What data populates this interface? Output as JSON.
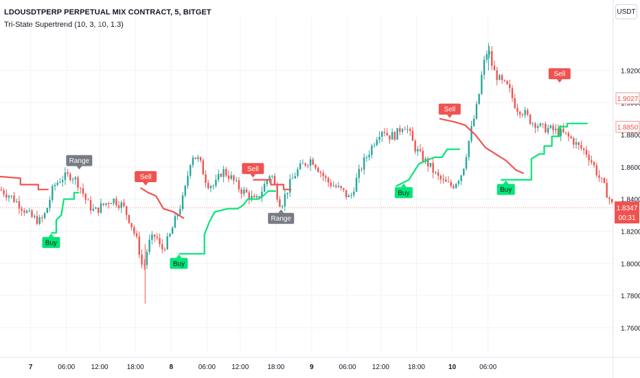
{
  "header": {
    "symbol_title": "LDOUSDTPERP PERPETUAL MIX CONTRACT, 5, BITGET",
    "indicator_label": "Tri-State Supertrend (10, 3, 10, 1.3)",
    "currency_button": "USDT"
  },
  "colors": {
    "bull": "#26a69a",
    "bear": "#ef5350",
    "trend_up": "#00e676",
    "trend_down": "#ef5350",
    "range_label": "#787b86",
    "last_price_bg": "#ef5350",
    "axis_text": "#131722",
    "grid": "#f0f3fa"
  },
  "chart_data": {
    "type": "candlestick",
    "y_axis": {
      "ylim": [
        1.745,
        1.945
      ],
      "ticks": [
        "1.7600",
        "1.7800",
        "1.8000",
        "1.8200",
        "1.8400",
        "1.8600",
        "1.8800",
        "1.9000",
        "1.9200"
      ],
      "position": "right"
    },
    "x_axis": {
      "xlim": [
        0,
        240
      ],
      "ticks": [
        {
          "label": "7",
          "x": 12,
          "bold": true
        },
        {
          "label": "06:00",
          "x": 26
        },
        {
          "label": "12:00",
          "x": 39
        },
        {
          "label": "18:00",
          "x": 53
        },
        {
          "label": "8",
          "x": 67,
          "bold": true
        },
        {
          "label": "06:00",
          "x": 81
        },
        {
          "label": "12:00",
          "x": 94
        },
        {
          "label": "18:00",
          "x": 108
        },
        {
          "label": "9",
          "x": 122,
          "bold": true
        },
        {
          "label": "06:00",
          "x": 136
        },
        {
          "label": "12:00",
          "x": 149
        },
        {
          "label": "18:00",
          "x": 163
        },
        {
          "label": "10",
          "x": 177,
          "bold": true
        },
        {
          "label": "06:00",
          "x": 191
        }
      ]
    },
    "price_path": [
      [
        0,
        1.846
      ],
      [
        4,
        1.842
      ],
      [
        8,
        1.836
      ],
      [
        12,
        1.829
      ],
      [
        16,
        1.826
      ],
      [
        18,
        1.832
      ],
      [
        21,
        1.848
      ],
      [
        24,
        1.853
      ],
      [
        28,
        1.855
      ],
      [
        31,
        1.849
      ],
      [
        34,
        1.838
      ],
      [
        37,
        1.832
      ],
      [
        40,
        1.836
      ],
      [
        44,
        1.84
      ],
      [
        48,
        1.836
      ],
      [
        51,
        1.826
      ],
      [
        54,
        1.812
      ],
      [
        56,
        1.795
      ],
      [
        58,
        1.812
      ],
      [
        61,
        1.818
      ],
      [
        63,
        1.808
      ],
      [
        66,
        1.815
      ],
      [
        69,
        1.829
      ],
      [
        72,
        1.842
      ],
      [
        75,
        1.868
      ],
      [
        78,
        1.864
      ],
      [
        81,
        1.85
      ],
      [
        84,
        1.848
      ],
      [
        87,
        1.858
      ],
      [
        90,
        1.854
      ],
      [
        94,
        1.846
      ],
      [
        97,
        1.843
      ],
      [
        100,
        1.838
      ],
      [
        103,
        1.847
      ],
      [
        106,
        1.857
      ],
      [
        108,
        1.845
      ],
      [
        110,
        1.836
      ],
      [
        113,
        1.848
      ],
      [
        116,
        1.857
      ],
      [
        119,
        1.862
      ],
      [
        122,
        1.865
      ],
      [
        125,
        1.858
      ],
      [
        128,
        1.851
      ],
      [
        131,
        1.848
      ],
      [
        134,
        1.845
      ],
      [
        137,
        1.84
      ],
      [
        139,
        1.85
      ],
      [
        142,
        1.862
      ],
      [
        145,
        1.871
      ],
      [
        148,
        1.881
      ],
      [
        150,
        1.884
      ],
      [
        152,
        1.879
      ],
      [
        155,
        1.88
      ],
      [
        158,
        1.887
      ],
      [
        160,
        1.882
      ],
      [
        162,
        1.873
      ],
      [
        165,
        1.866
      ],
      [
        168,
        1.861
      ],
      [
        171,
        1.854
      ],
      [
        174,
        1.85
      ],
      [
        177,
        1.848
      ],
      [
        179,
        1.852
      ],
      [
        181,
        1.857
      ],
      [
        184,
        1.88
      ],
      [
        187,
        1.9
      ],
      [
        189,
        1.922
      ],
      [
        191,
        1.934
      ],
      [
        193,
        1.92
      ],
      [
        196,
        1.913
      ],
      [
        199,
        1.909
      ],
      [
        202,
        1.897
      ],
      [
        205,
        1.894
      ],
      [
        208,
        1.888
      ],
      [
        210,
        1.887
      ],
      [
        212,
        1.884
      ],
      [
        214,
        1.884
      ],
      [
        216,
        1.883
      ],
      [
        218,
        1.882
      ],
      [
        220,
        1.881
      ],
      [
        222,
        1.879
      ],
      [
        224,
        1.877
      ],
      [
        226,
        1.873
      ],
      [
        228,
        1.871
      ],
      [
        230,
        1.868
      ],
      [
        232,
        1.862
      ],
      [
        234,
        1.855
      ],
      [
        236,
        1.849
      ],
      [
        238,
        1.842
      ],
      [
        240,
        1.8347
      ]
    ],
    "supertrend": [
      {
        "trend": "down",
        "points": [
          [
            0,
            1.854
          ],
          [
            8,
            1.853
          ],
          [
            8,
            1.849
          ],
          [
            15,
            1.849
          ],
          [
            15,
            1.846
          ],
          [
            19,
            1.846
          ]
        ]
      },
      {
        "trend": "up",
        "points": [
          [
            20,
            1.819
          ],
          [
            22,
            1.819
          ],
          [
            22,
            1.827
          ],
          [
            24,
            1.83
          ],
          [
            25,
            1.84
          ],
          [
            29,
            1.84
          ],
          [
            29,
            1.844
          ],
          [
            31,
            1.844
          ]
        ]
      },
      {
        "trend": "down",
        "points": [
          [
            55,
            1.847
          ],
          [
            58,
            1.844
          ],
          [
            61,
            1.842
          ],
          [
            64,
            1.834
          ],
          [
            68,
            1.832
          ],
          [
            70,
            1.83
          ],
          [
            72,
            1.828
          ]
        ]
      },
      {
        "trend": "up",
        "points": [
          [
            70,
            1.806
          ],
          [
            80,
            1.806
          ],
          [
            80,
            1.818
          ],
          [
            82,
            1.826
          ],
          [
            84,
            1.832
          ],
          [
            89,
            1.834
          ],
          [
            93,
            1.834
          ],
          [
            95,
            1.836
          ],
          [
            97,
            1.84
          ],
          [
            101,
            1.84
          ],
          [
            103,
            1.842
          ],
          [
            105,
            1.845
          ],
          [
            108,
            1.845
          ]
        ]
      },
      {
        "trend": "down",
        "points": [
          [
            99,
            1.852
          ],
          [
            106,
            1.852
          ],
          [
            106,
            1.849
          ],
          [
            111,
            1.849
          ],
          [
            111,
            1.846
          ],
          [
            114,
            1.846
          ]
        ]
      },
      {
        "trend": "up",
        "points": [
          [
            155,
            1.848
          ],
          [
            160,
            1.852
          ],
          [
            162,
            1.857
          ],
          [
            164,
            1.862
          ],
          [
            167,
            1.864
          ],
          [
            170,
            1.866
          ],
          [
            173,
            1.866
          ],
          [
            175,
            1.871
          ],
          [
            180,
            1.871
          ]
        ]
      },
      {
        "trend": "down",
        "points": [
          [
            172,
            1.89
          ],
          [
            178,
            1.888
          ],
          [
            182,
            1.886
          ],
          [
            186,
            1.88
          ],
          [
            190,
            1.872
          ],
          [
            194,
            1.868
          ],
          [
            198,
            1.864
          ],
          [
            202,
            1.858
          ],
          [
            205,
            1.856
          ]
        ]
      },
      {
        "trend": "up",
        "points": [
          [
            196,
            1.852
          ],
          [
            204,
            1.852
          ],
          [
            208,
            1.852
          ],
          [
            208,
            1.865
          ],
          [
            211,
            1.868
          ],
          [
            213,
            1.868
          ],
          [
            213,
            1.873
          ],
          [
            216,
            1.873
          ],
          [
            216,
            1.879
          ],
          [
            219,
            1.879
          ],
          [
            219,
            1.885
          ],
          [
            222,
            1.885
          ],
          [
            222,
            1.887
          ],
          [
            230,
            1.887
          ]
        ]
      }
    ],
    "signals": [
      {
        "text": "Range",
        "x": 31,
        "y": 1.858,
        "type": "range",
        "pointer": "down"
      },
      {
        "text": "Buy",
        "x": 20,
        "y": 1.819,
        "type": "buy",
        "pointer": "up"
      },
      {
        "text": "Sell",
        "x": 57,
        "y": 1.848,
        "type": "sell",
        "pointer": "down"
      },
      {
        "text": "Buy",
        "x": 70,
        "y": 1.806,
        "type": "buy",
        "pointer": "up"
      },
      {
        "text": "Sell",
        "x": 99,
        "y": 1.853,
        "type": "sell",
        "pointer": "down"
      },
      {
        "text": "Range",
        "x": 110,
        "y": 1.834,
        "type": "range",
        "pointer": "up"
      },
      {
        "text": "Buy",
        "x": 158,
        "y": 1.85,
        "type": "buy",
        "pointer": "up"
      },
      {
        "text": "Sell",
        "x": 176,
        "y": 1.89,
        "type": "sell",
        "pointer": "down"
      },
      {
        "text": "Buy",
        "x": 198,
        "y": 1.852,
        "type": "buy",
        "pointer": "up"
      },
      {
        "text": "Sell",
        "x": 219,
        "y": 1.912,
        "type": "sell",
        "pointer": "down"
      }
    ],
    "price_labels": [
      {
        "text": "1.9027",
        "value": 1.9027,
        "style": "outline"
      },
      {
        "text": "1.8850",
        "value": 1.885,
        "style": "outline-green"
      }
    ],
    "last_price": {
      "text": "1.8347",
      "value": 1.8347,
      "countdown": "00:31"
    }
  }
}
